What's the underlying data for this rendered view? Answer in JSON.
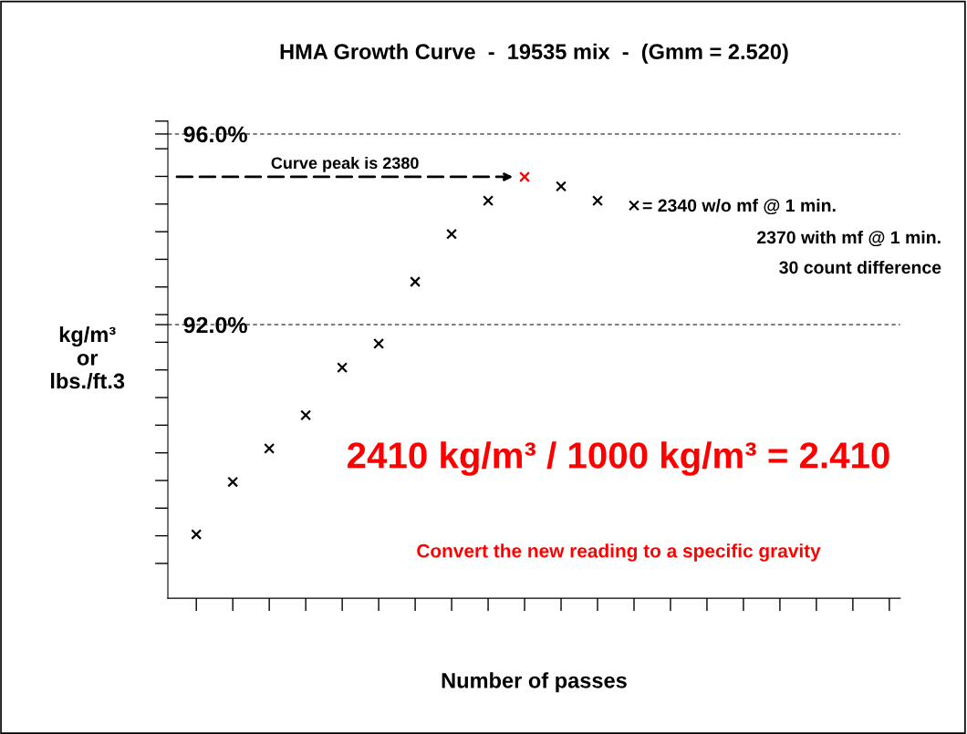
{
  "chart_data": {
    "type": "scatter",
    "title": "HMA Growth Curve  -  19535 mix  -  (Gmm = 2.520)",
    "xlabel": "Number of passes",
    "ylabel": "kg/m³\nor\nlbs./ft.3",
    "categories": [
      null,
      null,
      null,
      null,
      null,
      null,
      null,
      null,
      null,
      null,
      null,
      null,
      null,
      null,
      null,
      null,
      null,
      null,
      null,
      null
    ],
    "series": [
      {
        "colors": [
          "#000000",
          "#000000",
          "#000000",
          "#000000",
          "#000000",
          "#000000",
          "#000000",
          "#000000",
          "#000000",
          "#ff0000",
          "#000000",
          "#000000",
          "#000000",
          "#000000",
          "#000000",
          "#000000",
          "#000000",
          "#000000",
          "#000000",
          "#000000"
        ],
        "values": [
          87.6,
          88.7,
          89.4,
          90.1,
          91.1,
          91.6,
          92.9,
          93.9,
          94.6,
          95.1,
          94.9,
          94.6,
          94.5,
          null,
          null,
          null,
          null,
          null,
          null,
          null
        ]
      }
    ],
    "marker": "cross",
    "ylim": [
      86.26,
      96.27
    ],
    "yticks": [
      {
        "value": 96.27,
        "label": null
      },
      {
        "value": 96,
        "label": "96.0%"
      },
      {
        "value": 95.69,
        "label": null
      },
      {
        "value": 95.11,
        "label": null
      },
      {
        "value": 94.53,
        "label": null
      },
      {
        "value": 93.95,
        "label": null
      },
      {
        "value": 93.37,
        "label": null
      },
      {
        "value": 92.79,
        "label": null
      },
      {
        "value": 92.21,
        "label": null
      },
      {
        "value": 92,
        "label": "92.0%"
      },
      {
        "value": 91.63,
        "label": null
      },
      {
        "value": 91.05,
        "label": null
      },
      {
        "value": 90.47,
        "label": null
      },
      {
        "value": 89.89,
        "label": null
      },
      {
        "value": 89.31,
        "label": null
      },
      {
        "value": 88.73,
        "label": null
      },
      {
        "value": 88.15,
        "label": null
      },
      {
        "value": 87.57,
        "label": null
      },
      {
        "value": 86.99,
        "label": null
      }
    ],
    "ref_lines": [
      {
        "axis": "y",
        "value": 96,
        "line_style": "dashed",
        "color": "#000000"
      },
      {
        "axis": "y",
        "value": 92,
        "line_style": "dashed",
        "color": "#000000"
      }
    ],
    "annotations": [
      "Curve peak is 2380",
      "= 2340 w/o mf @ 1 min.",
      "2370 with mf @ 1 min.",
      "30 count difference",
      "2410 kg/m³ / 1000 kg/m³ = 2.410",
      "Convert the new reading to a specific gravity"
    ],
    "grid": false,
    "legend": false
  }
}
